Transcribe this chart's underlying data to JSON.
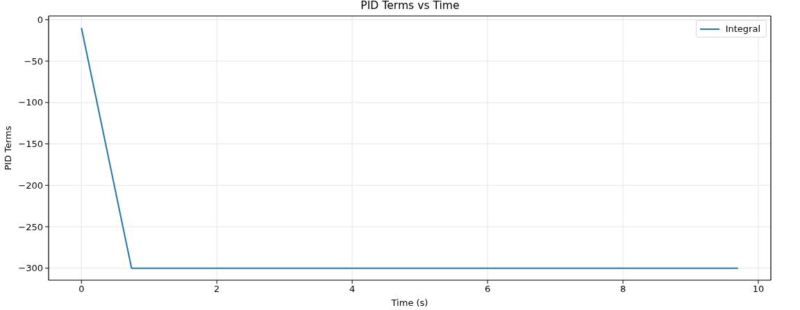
{
  "chart_data": {
    "type": "line",
    "title": "PID Terms vs Time",
    "xlabel": "Time (s)",
    "ylabel": "PID Terms",
    "x": [
      0,
      0.74,
      9.7
    ],
    "series": [
      {
        "name": "Integral",
        "color": "#1f77b4",
        "values": [
          -10,
          -300,
          -300
        ]
      }
    ],
    "xlim": [
      -0.485,
      10.185
    ],
    "xticks": [
      0,
      2,
      4,
      6,
      8,
      10
    ],
    "ylim": [
      -314.5,
      4.5
    ],
    "yticks": [
      0,
      {
        "value": -50,
        "label": "−50"
      },
      {
        "value": -100,
        "label": "−100"
      },
      {
        "value": -150,
        "label": "−150"
      },
      {
        "value": -200,
        "label": "−200"
      },
      {
        "value": -250,
        "label": "−250"
      },
      {
        "value": -300,
        "label": "−300"
      }
    ],
    "grid": true,
    "legend": "top right"
  }
}
